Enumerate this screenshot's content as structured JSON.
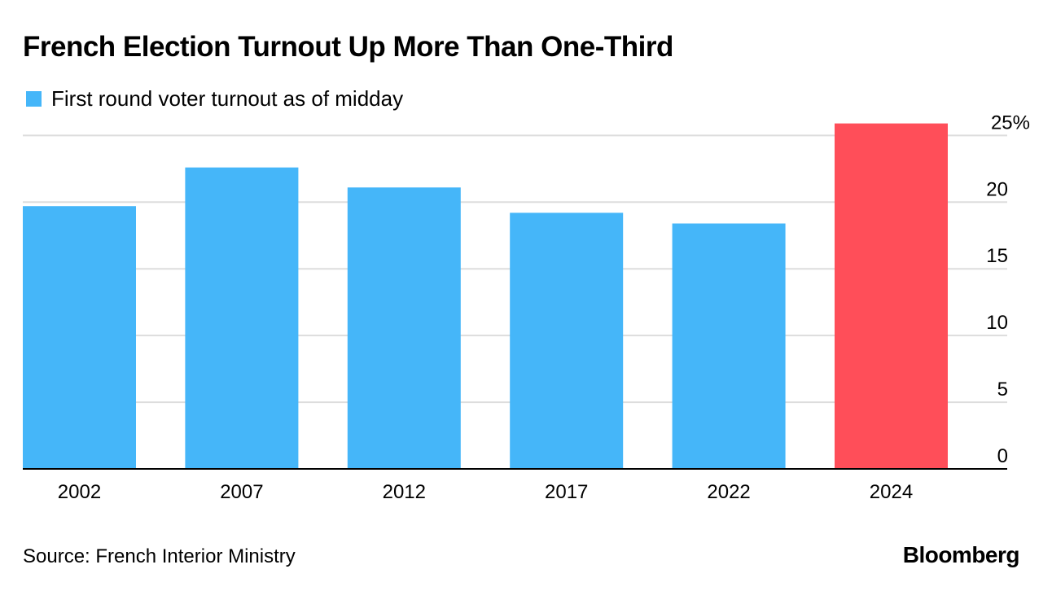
{
  "chart_data": {
    "type": "bar",
    "title": "French Election Turnout Up More Than One-Third",
    "legend": [
      {
        "label": "First round voter turnout as of midday",
        "color": "#45B6F9"
      }
    ],
    "categories": [
      "2002",
      "2007",
      "2012",
      "2017",
      "2022",
      "2024"
    ],
    "values": [
      19.7,
      22.6,
      21.1,
      19.2,
      18.4,
      25.9
    ],
    "colors": [
      "#45B6F9",
      "#45B6F9",
      "#45B6F9",
      "#45B6F9",
      "#45B6F9",
      "#FF4E59"
    ],
    "ylim": [
      0,
      26
    ],
    "y_ticks": [
      0,
      5,
      10,
      15,
      20,
      25
    ],
    "y_tick_labels": [
      "0",
      "5",
      "10",
      "15",
      "20",
      "25%"
    ],
    "y_axis_position": "right",
    "grid": true,
    "xlabel": "",
    "ylabel": ""
  },
  "footer": {
    "source": "Source: French Interior Ministry",
    "brand": "Bloomberg"
  }
}
